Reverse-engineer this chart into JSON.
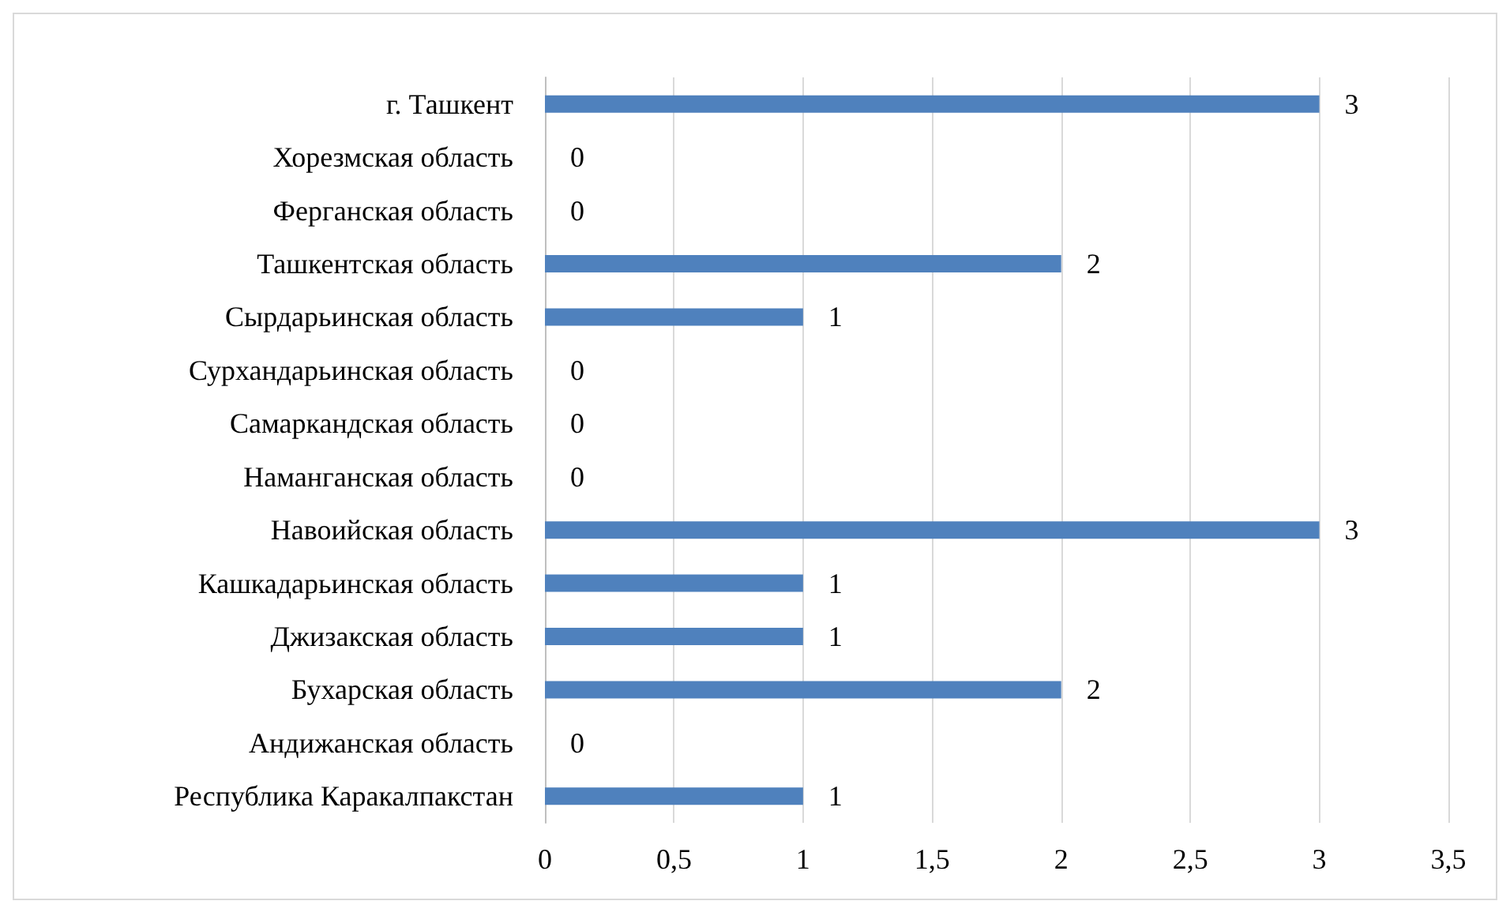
{
  "chart_data": {
    "type": "bar",
    "orientation": "horizontal",
    "categories": [
      "г. Ташкент",
      "Хорезмская область",
      "Ферганская область",
      "Ташкентская область",
      "Сырдарьинская область",
      "Сурхандарьинская область",
      "Самаркандская область",
      "Наманганская область",
      "Навоийская область",
      "Кашкадарьинская область",
      "Джизакская область",
      "Бухарская область",
      "Андижанская область",
      "Республика Каракалпакстан"
    ],
    "values": [
      3,
      0,
      0,
      2,
      1,
      0,
      0,
      0,
      3,
      1,
      1,
      2,
      0,
      1
    ],
    "color": "#4f81bd",
    "xlim": [
      0,
      3.5
    ],
    "xticks": [
      0,
      {
        "value": 0.5,
        "label": "0,5"
      },
      1,
      {
        "value": 1.5,
        "label": "1,5"
      },
      2,
      {
        "value": 2.5,
        "label": "2,5"
      },
      3,
      {
        "value": 3.5,
        "label": "3,5"
      }
    ],
    "grid": "x",
    "data_labels": true
  }
}
